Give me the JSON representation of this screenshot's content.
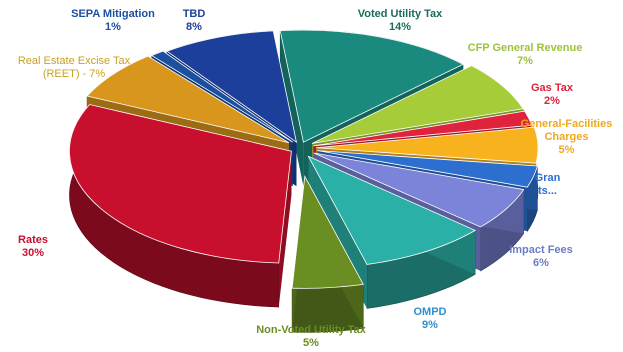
{
  "chart_data": {
    "type": "pie",
    "title": "",
    "slices": [
      {
        "label": "Voted Utility Tax",
        "value_label": "14%",
        "value": 14,
        "color": "#1a8a7e"
      },
      {
        "label": "CFP General Revenue",
        "value_label": "7%",
        "value": 7,
        "color": "#a6cc3a"
      },
      {
        "label": "Gas Tax",
        "value_label": "2%",
        "value": 2,
        "color": "#e0233c"
      },
      {
        "label": "General-Facilities Charges",
        "value_label": "5%",
        "value": 5,
        "color": "#f8b21e"
      },
      {
        "label": "Grants",
        "value_label": "",
        "value": 3,
        "color": "#2d6fcf"
      },
      {
        "label": "Impact Fees",
        "value_label": "6%",
        "value": 6,
        "color": "#7b84d8"
      },
      {
        "label": "OMPD",
        "value_label": "9%",
        "value": 9,
        "color": "#2bb0a8"
      },
      {
        "label": "Non-Voted Utility Tax",
        "value_label": "5%",
        "value": 5,
        "color": "#6b8e23"
      },
      {
        "label": "Rates",
        "value_label": "30%",
        "value": 30,
        "color": "#c8102e"
      },
      {
        "label": "Real Estate Excise Tax (REET)",
        "value_label": "7%",
        "value": 7,
        "color": "#d9961c"
      },
      {
        "label": "SEPA Mitigation",
        "value_label": "1%",
        "value": 1,
        "color": "#1b4fa0"
      },
      {
        "label": "TBD",
        "value_label": "8%",
        "value": 8,
        "color": "#1b3f9a"
      }
    ]
  },
  "labels": {
    "voted_utility_tax": {
      "name": "Voted Utility Tax",
      "pct": "14%",
      "color": "#1a6b5e"
    },
    "cfp_general_revenue": {
      "name": "CFP General Revenue",
      "pct": "7%",
      "color": "#9cc33a"
    },
    "gas_tax": {
      "name": "Gas Tax",
      "pct": "2%",
      "color": "#e0233c"
    },
    "general_facilities": {
      "name1": "General-Facilities",
      "name2": "Charges",
      "pct": "5%",
      "color": "#f0a81c"
    },
    "grants": {
      "name1": "Gran",
      "name2": "ts...",
      "color": "#2d6fcf"
    },
    "impact_fees": {
      "name": "Impact Fees",
      "pct": "6%",
      "color": "#6b7bc8"
    },
    "ompd": {
      "name": "OMPD",
      "pct": "9%",
      "color": "#2d8fcf"
    },
    "non_voted_utility_tax": {
      "name": "Non-Voted Utility Tax",
      "pct": "5%",
      "color": "#6b8e23"
    },
    "rates": {
      "name": "Rates",
      "pct": "30%",
      "color": "#c8102e"
    },
    "reet": {
      "name1": "Real Estate Excise Tax",
      "name2": "(REET) - 7%",
      "color": "#c9a020"
    },
    "sepa_mitigation": {
      "name": "SEPA Mitigation",
      "pct": "1%",
      "color": "#1b4fa0"
    },
    "tbd": {
      "name": "TBD",
      "pct": "8%",
      "color": "#1b3f9a"
    }
  }
}
